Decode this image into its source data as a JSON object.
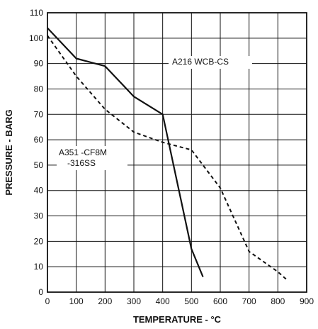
{
  "chart_data": {
    "type": "line",
    "xlabel": "TEMPERATURE - °C",
    "ylabel": "PRESSURE - BARG",
    "xlim": [
      0,
      900
    ],
    "ylim": [
      0,
      110
    ],
    "x_ticks": [
      0,
      100,
      200,
      300,
      400,
      500,
      600,
      700,
      800,
      900
    ],
    "y_ticks": [
      0,
      10,
      20,
      30,
      40,
      50,
      60,
      70,
      80,
      90,
      100,
      110
    ],
    "grid": true,
    "series": [
      {
        "name": "A216 WCB-CS",
        "line_style": "solid",
        "color": "#111111",
        "x": [
          0,
          100,
          200,
          300,
          400,
          500,
          540
        ],
        "y": [
          104,
          92,
          89,
          77,
          70,
          17,
          6
        ]
      },
      {
        "name": "A351 -CF8M -316SS",
        "line_style": "dashed",
        "color": "#111111",
        "x": [
          0,
          100,
          200,
          300,
          400,
          500,
          600,
          700,
          800,
          830
        ],
        "y": [
          101,
          85,
          72,
          63,
          59,
          56,
          41,
          16,
          8,
          5
        ]
      }
    ],
    "annotations": [
      {
        "series": "A216 WCB-CS",
        "lines": [
          "A216 WCB-CS"
        ]
      },
      {
        "series": "A351 -CF8M -316SS",
        "lines": [
          "A351 -CF8M",
          "-316SS"
        ]
      }
    ]
  }
}
